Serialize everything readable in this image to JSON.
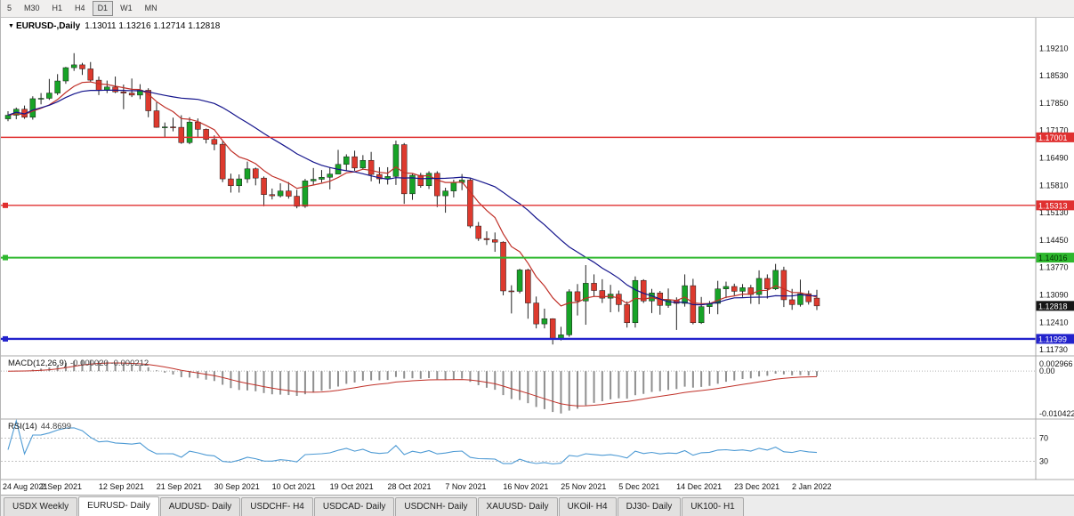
{
  "toolbar": {
    "timeframes": [
      {
        "label": "5",
        "active": false
      },
      {
        "label": "M30",
        "active": false
      },
      {
        "label": "H1",
        "active": false
      },
      {
        "label": "H4",
        "active": false
      },
      {
        "label": "D1",
        "active": true
      },
      {
        "label": "W1",
        "active": false
      },
      {
        "label": "MN",
        "active": false
      }
    ]
  },
  "chart": {
    "symbol_period": "EURUSD-,Daily",
    "ohlc_text": "1.13011 1.13216 1.12714 1.12818",
    "dropdown_icon": "▼"
  },
  "chart_data": {
    "type": "candlestick",
    "symbol": "EURUSD-",
    "timeframe": "Daily",
    "ohlc": [
      [
        1.1746,
        1.1765,
        1.174,
        1.1755
      ],
      [
        1.1755,
        1.1774,
        1.1745,
        1.177
      ],
      [
        1.177,
        1.1779,
        1.1746,
        1.175
      ],
      [
        1.175,
        1.1802,
        1.1744,
        1.1796
      ],
      [
        1.1796,
        1.181,
        1.1782,
        1.1797
      ],
      [
        1.1797,
        1.1845,
        1.1793,
        1.181
      ],
      [
        1.181,
        1.1857,
        1.1805,
        1.184
      ],
      [
        1.184,
        1.1875,
        1.1833,
        1.1873
      ],
      [
        1.1873,
        1.1909,
        1.1865,
        1.188
      ],
      [
        1.188,
        1.1885,
        1.1855,
        1.187
      ],
      [
        1.187,
        1.1887,
        1.1838,
        1.1842
      ],
      [
        1.1842,
        1.1851,
        1.1805,
        1.1817
      ],
      [
        1.1817,
        1.1841,
        1.181,
        1.1825
      ],
      [
        1.1825,
        1.1851,
        1.181,
        1.1813
      ],
      [
        1.1813,
        1.1831,
        1.177,
        1.181
      ],
      [
        1.181,
        1.1846,
        1.18,
        1.1805
      ],
      [
        1.1805,
        1.1832,
        1.1795,
        1.1817
      ],
      [
        1.1817,
        1.1822,
        1.175,
        1.1766
      ],
      [
        1.1766,
        1.1787,
        1.1724,
        1.1725
      ],
      [
        1.1725,
        1.1737,
        1.17,
        1.1726
      ],
      [
        1.1726,
        1.1749,
        1.1715,
        1.1725
      ],
      [
        1.1725,
        1.1755,
        1.1684,
        1.1687
      ],
      [
        1.1687,
        1.175,
        1.1683,
        1.1738
      ],
      [
        1.1738,
        1.1747,
        1.1701,
        1.172
      ],
      [
        1.172,
        1.1722,
        1.1685,
        1.1695
      ],
      [
        1.1695,
        1.1705,
        1.1668,
        1.1683
      ],
      [
        1.1683,
        1.169,
        1.1589,
        1.1597
      ],
      [
        1.1597,
        1.161,
        1.1563,
        1.158
      ],
      [
        1.158,
        1.1608,
        1.1563,
        1.1597
      ],
      [
        1.1597,
        1.164,
        1.1587,
        1.1622
      ],
      [
        1.1622,
        1.1625,
        1.1581,
        1.1599
      ],
      [
        1.1599,
        1.1603,
        1.1529,
        1.1558
      ],
      [
        1.1558,
        1.1573,
        1.1546,
        1.1555
      ],
      [
        1.1555,
        1.1586,
        1.1551,
        1.1567
      ],
      [
        1.1567,
        1.1589,
        1.1548,
        1.1554
      ],
      [
        1.1554,
        1.157,
        1.1524,
        1.1529
      ],
      [
        1.1529,
        1.1597,
        1.1525,
        1.1592
      ],
      [
        1.1592,
        1.1624,
        1.1582,
        1.1596
      ],
      [
        1.1596,
        1.1619,
        1.1588,
        1.1601
      ],
      [
        1.1601,
        1.1626,
        1.1571,
        1.1609
      ],
      [
        1.1609,
        1.1669,
        1.1609,
        1.1633
      ],
      [
        1.1633,
        1.1658,
        1.1617,
        1.1652
      ],
      [
        1.1652,
        1.1667,
        1.1617,
        1.1624
      ],
      [
        1.1624,
        1.1656,
        1.162,
        1.1643
      ],
      [
        1.1643,
        1.1664,
        1.1591,
        1.1608
      ],
      [
        1.1608,
        1.1626,
        1.1585,
        1.1597
      ],
      [
        1.1597,
        1.1626,
        1.1583,
        1.1603
      ],
      [
        1.1603,
        1.1692,
        1.1582,
        1.1682
      ],
      [
        1.1682,
        1.1686,
        1.1535,
        1.156
      ],
      [
        1.156,
        1.1609,
        1.1545,
        1.1606
      ],
      [
        1.1606,
        1.1612,
        1.1575,
        1.158
      ],
      [
        1.158,
        1.1616,
        1.1572,
        1.1611
      ],
      [
        1.1611,
        1.1616,
        1.1527,
        1.1555
      ],
      [
        1.1555,
        1.1575,
        1.1513,
        1.1567
      ],
      [
        1.1567,
        1.1595,
        1.1551,
        1.1588
      ],
      [
        1.1588,
        1.1609,
        1.1569,
        1.1594
      ],
      [
        1.1594,
        1.1598,
        1.1475,
        1.148
      ],
      [
        1.148,
        1.149,
        1.1443,
        1.1449
      ],
      [
        1.1449,
        1.1467,
        1.1433,
        1.1446
      ],
      [
        1.1446,
        1.1464,
        1.1416,
        1.144
      ],
      [
        1.144,
        1.1442,
        1.1308,
        1.1319
      ],
      [
        1.1319,
        1.1333,
        1.1263,
        1.1318
      ],
      [
        1.1318,
        1.1374,
        1.1313,
        1.1371
      ],
      [
        1.1371,
        1.1374,
        1.125,
        1.1289
      ],
      [
        1.1289,
        1.1305,
        1.1226,
        1.1237
      ],
      [
        1.1237,
        1.1275,
        1.1226,
        1.125
      ],
      [
        1.125,
        1.1251,
        1.1186,
        1.12
      ],
      [
        1.12,
        1.123,
        1.1196,
        1.121
      ],
      [
        1.121,
        1.1323,
        1.1205,
        1.1317
      ],
      [
        1.1317,
        1.1336,
        1.1258,
        1.1294
      ],
      [
        1.1294,
        1.1383,
        1.1235,
        1.1338
      ],
      [
        1.1338,
        1.136,
        1.1305,
        1.132
      ],
      [
        1.132,
        1.1348,
        1.1289,
        1.1301
      ],
      [
        1.1301,
        1.1334,
        1.1266,
        1.1311
      ],
      [
        1.1311,
        1.132,
        1.1267,
        1.1285
      ],
      [
        1.1285,
        1.1293,
        1.1228,
        1.124
      ],
      [
        1.124,
        1.1355,
        1.1228,
        1.1345
      ],
      [
        1.1345,
        1.1348,
        1.1289,
        1.1294
      ],
      [
        1.1294,
        1.1324,
        1.1264,
        1.1314
      ],
      [
        1.1314,
        1.1319,
        1.126,
        1.1283
      ],
      [
        1.1283,
        1.1325,
        1.1277,
        1.1296
      ],
      [
        1.1296,
        1.1303,
        1.1222,
        1.1288
      ],
      [
        1.1288,
        1.136,
        1.128,
        1.1332
      ],
      [
        1.1332,
        1.1349,
        1.1236,
        1.124
      ],
      [
        1.124,
        1.1304,
        1.1237,
        1.128
      ],
      [
        1.128,
        1.1294,
        1.1262,
        1.1288
      ],
      [
        1.1288,
        1.1344,
        1.1261,
        1.1324
      ],
      [
        1.1324,
        1.1342,
        1.1301,
        1.133
      ],
      [
        1.133,
        1.1337,
        1.1308,
        1.1318
      ],
      [
        1.1318,
        1.1336,
        1.1304,
        1.1327
      ],
      [
        1.1327,
        1.1334,
        1.1287,
        1.131
      ],
      [
        1.131,
        1.137,
        1.1286,
        1.135
      ],
      [
        1.135,
        1.136,
        1.13,
        1.1324
      ],
      [
        1.1324,
        1.1386,
        1.1321,
        1.137
      ],
      [
        1.137,
        1.1379,
        1.1279,
        1.1297
      ],
      [
        1.1297,
        1.1324,
        1.1272,
        1.1285
      ],
      [
        1.1285,
        1.1347,
        1.128,
        1.1312
      ],
      [
        1.1312,
        1.132,
        1.1285,
        1.1292
      ],
      [
        1.13011,
        1.13216,
        1.12714,
        1.12818
      ]
    ],
    "x_labels": [
      {
        "i": 0,
        "label": "24 Aug 2021"
      },
      {
        "i": 7,
        "label": "2 Sep 2021"
      },
      {
        "i": 14,
        "label": "12 Sep 2021"
      },
      {
        "i": 21,
        "label": "21 Sep 2021"
      },
      {
        "i": 28,
        "label": "30 Sep 2021"
      },
      {
        "i": 35,
        "label": "10 Oct 2021"
      },
      {
        "i": 42,
        "label": "19 Oct 2021"
      },
      {
        "i": 49,
        "label": "28 Oct 2021"
      },
      {
        "i": 56,
        "label": "7 Nov 2021"
      },
      {
        "i": 63,
        "label": "16 Nov 2021"
      },
      {
        "i": 70,
        "label": "25 Nov 2021"
      },
      {
        "i": 77,
        "label": "5 Dec 2021"
      },
      {
        "i": 84,
        "label": "14 Dec 2021"
      },
      {
        "i": 91,
        "label": "23 Dec 2021"
      },
      {
        "i": 98,
        "label": "2 Jan 2022"
      }
    ],
    "y_axis": {
      "range": [
        1.116,
        1.1999
      ],
      "decimals": 5,
      "ticks": [
        1.1921,
        1.1853,
        1.1785,
        1.1717,
        1.1649,
        1.1581,
        1.1513,
        1.1445,
        1.1377,
        1.1309,
        1.1241,
        1.1173
      ]
    },
    "hlines": [
      {
        "value": 1.17001,
        "color": "#e03030",
        "text_color": "#ffffff",
        "width": 1.4,
        "handle": false
      },
      {
        "value": 1.15313,
        "color": "#e03030",
        "text_color": "#ffffff",
        "width": 1.4,
        "handle": true
      },
      {
        "value": 1.14016,
        "color": "#2eb82e",
        "text_color": "#003300",
        "width": 2,
        "handle": true
      },
      {
        "value": 1.11999,
        "color": "#2222cc",
        "text_color": "#ffffff",
        "width": 2.4,
        "handle": true
      }
    ],
    "price_tag": {
      "value": 1.12818,
      "bg": "#161616",
      "text_color": "#ffffff"
    },
    "candle_colors": {
      "up": "#17a327",
      "down": "#dd3a2e",
      "wick": "#222222"
    },
    "moving_averages": [
      {
        "period": 8,
        "type": "ema",
        "color": "#c03028"
      },
      {
        "period": 21,
        "type": "sma",
        "color": "#14148c"
      }
    ],
    "macd": {
      "label": "MACD(12,26,9)",
      "values": "-0.000020 -0.000212",
      "fast": 12,
      "slow": 26,
      "signal": 9,
      "range": [
        -0.0115,
        0.0033
      ],
      "axis_labels": [
        {
          "text": "0.002966",
          "value": 0.002966
        },
        {
          "text": "0.00",
          "value": 0
        },
        {
          "text": "-0.010422",
          "value": -0.010422
        }
      ],
      "bar_color": "#8f8f8f",
      "signal_color": "#c03028"
    },
    "rsi": {
      "label": "RSI(14)",
      "value": "44.8699",
      "period": 14,
      "levels": [
        70,
        30
      ],
      "range": [
        0,
        100
      ],
      "color": "#4d9ad4"
    }
  },
  "tabs": {
    "items": [
      {
        "label": "USDX Weekly",
        "active": false
      },
      {
        "label": "EURUSD- Daily",
        "active": true
      },
      {
        "label": "AUDUSD- Daily",
        "active": false
      },
      {
        "label": "USDCHF- H4",
        "active": false
      },
      {
        "label": "USDCAD- Daily",
        "active": false
      },
      {
        "label": "USDCNH- Daily",
        "active": false
      },
      {
        "label": "XAUUSD- Daily",
        "active": false
      },
      {
        "label": "UKOil- H4",
        "active": false
      },
      {
        "label": "DJ30- Daily",
        "active": false
      },
      {
        "label": "UK100- H1",
        "active": false
      }
    ]
  }
}
